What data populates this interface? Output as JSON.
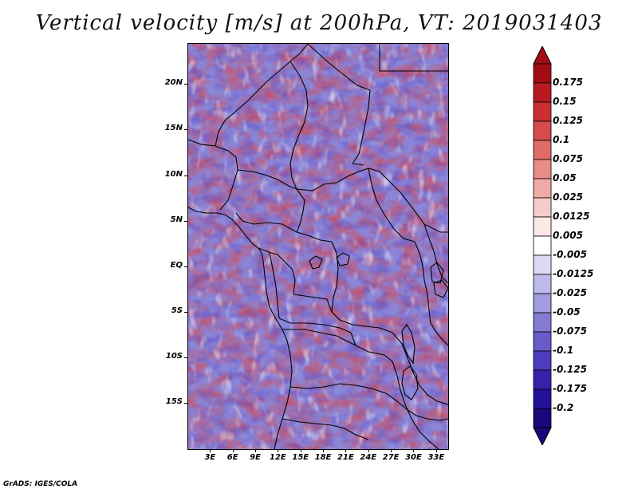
{
  "title": "Vertical velocity [m/s] at 200hPa, VT: 2019031403",
  "credit": "GrADS: IGES/COLA",
  "map": {
    "lat_labels": [
      "20N",
      "15N",
      "10N",
      "5N",
      "EQ",
      "5S",
      "10S",
      "15S"
    ],
    "lat_values": [
      20,
      15,
      10,
      5,
      0,
      -5,
      -10,
      -15
    ],
    "lon_labels": [
      "3E",
      "6E",
      "9E",
      "12E",
      "15E",
      "18E",
      "21E",
      "24E",
      "27E",
      "30E",
      "33E"
    ],
    "lon_values": [
      3,
      6,
      9,
      12,
      15,
      18,
      21,
      24,
      27,
      30,
      33
    ],
    "lon_range": [
      0,
      34.5
    ],
    "lat_range": [
      -20,
      24.5
    ]
  },
  "colorbar": {
    "labels": [
      "0.175",
      "0.15",
      "0.125",
      "0.1",
      "0.075",
      "0.05",
      "0.025",
      "0.0125",
      "0.005",
      "-0.005",
      "-0.0125",
      "-0.025",
      "-0.05",
      "-0.075",
      "-0.1",
      "-0.125",
      "-0.175",
      "-0.2"
    ],
    "colors": [
      "#a10d12",
      "#b81a20",
      "#c92f33",
      "#d64b4b",
      "#e06a66",
      "#e98b86",
      "#f1aba6",
      "#f7cbc7",
      "#fce8e6",
      "#ffffff",
      "#dcdaf3",
      "#bebbea",
      "#a19be0",
      "#847bd4",
      "#675bc8",
      "#4d3dbb",
      "#3722ab",
      "#23119a",
      "#17087c"
    ],
    "top_arrow_color": "#a10d12",
    "bottom_arrow_color": "#17087c"
  }
}
